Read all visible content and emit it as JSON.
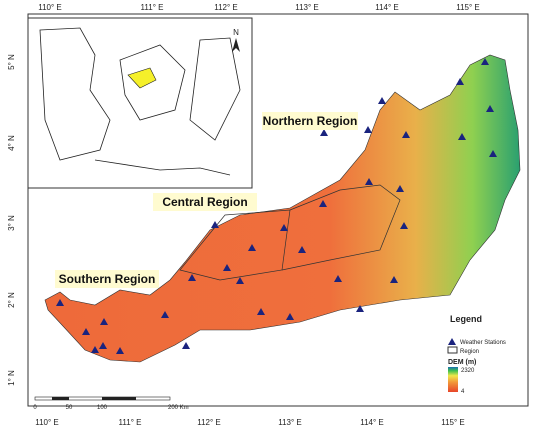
{
  "top_labels": [
    "110° E",
    "111° E",
    "112° E",
    "113° E",
    "114° E",
    "115° E"
  ],
  "bottom_labels": [
    "110° E",
    "111° E",
    "112° E",
    "113° E",
    "114° E",
    "115° E"
  ],
  "left_labels": [
    "5° N",
    "4° N",
    "3° N",
    "2° N",
    "1° N"
  ],
  "regions": [
    "Northern Region",
    "Central Region",
    "Southern Region"
  ],
  "legend": {
    "title": "Legend",
    "stations": "Weather Stations",
    "region": "Region",
    "dem_title": "DEM (m)",
    "dem_max": "2320",
    "dem_min": "4"
  },
  "scale_bar": [
    "0",
    "50",
    "100",
    "200 Km"
  ],
  "inset": {
    "north": "N"
  }
}
